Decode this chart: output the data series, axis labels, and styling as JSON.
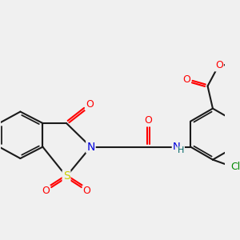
{
  "bg_color": "#f0f0f0",
  "bond_color": "#1a1a1a",
  "O_color": "#ff0000",
  "N_color": "#0000dd",
  "S_color": "#cccc00",
  "Cl_color": "#008800",
  "font_size": 8.5,
  "line_width": 1.5,
  "dpi": 100,
  "figsize": [
    3.0,
    3.0
  ],
  "xlim": [
    -0.3,
    3.2
  ],
  "ylim": [
    0.2,
    3.0
  ]
}
